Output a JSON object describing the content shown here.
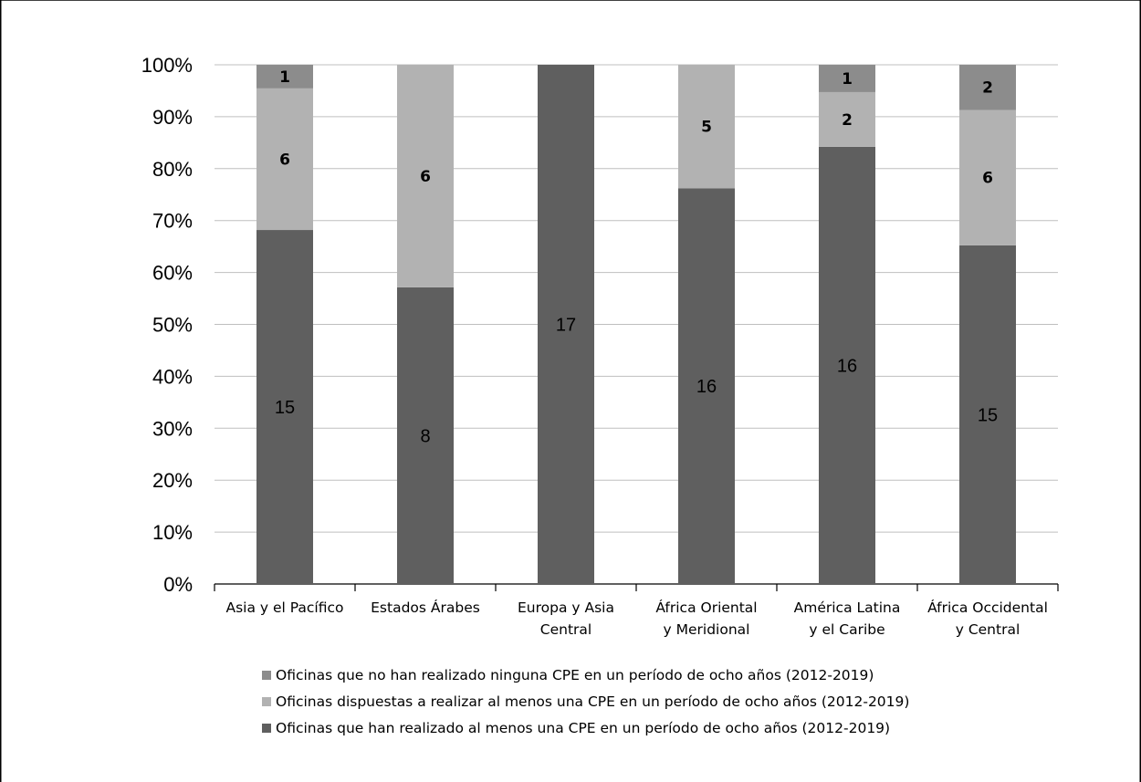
{
  "chart_data": {
    "type": "bar",
    "stacked": true,
    "normalized": true,
    "categories": [
      [
        "Asia y el Pacífico"
      ],
      [
        "Estados Árabes"
      ],
      [
        "Europa y Asia",
        "Central"
      ],
      [
        "África Oriental",
        "y Meridional"
      ],
      [
        "América Latina",
        "y el Caribe"
      ],
      [
        "África Occidental",
        "y Central"
      ]
    ],
    "series": [
      {
        "name": "Oficinas que han realizado al menos una CPE en un período de ocho años (2012-2019)",
        "values": [
          15,
          8,
          17,
          16,
          16,
          15
        ],
        "color": "#5f5f5f"
      },
      {
        "name": "Oficinas dispuestas a realizar al menos una CPE en un período de ocho años (2012-2019)",
        "values": [
          6,
          6,
          0,
          5,
          2,
          6
        ],
        "color": "#b2b2b2"
      },
      {
        "name": "Oficinas que no han realizado ninguna CPE en un período de ocho años (2012-2019)",
        "values": [
          1,
          0,
          0,
          0,
          1,
          2
        ],
        "color": "#8c8c8c"
      }
    ],
    "legend_order": [
      2,
      1,
      0
    ],
    "y_ticks": [
      "0%",
      "10%",
      "20%",
      "30%",
      "40%",
      "50%",
      "60%",
      "70%",
      "80%",
      "90%",
      "100%"
    ],
    "ylim": [
      0,
      100
    ],
    "grid": true,
    "legend_position": "bottom"
  }
}
